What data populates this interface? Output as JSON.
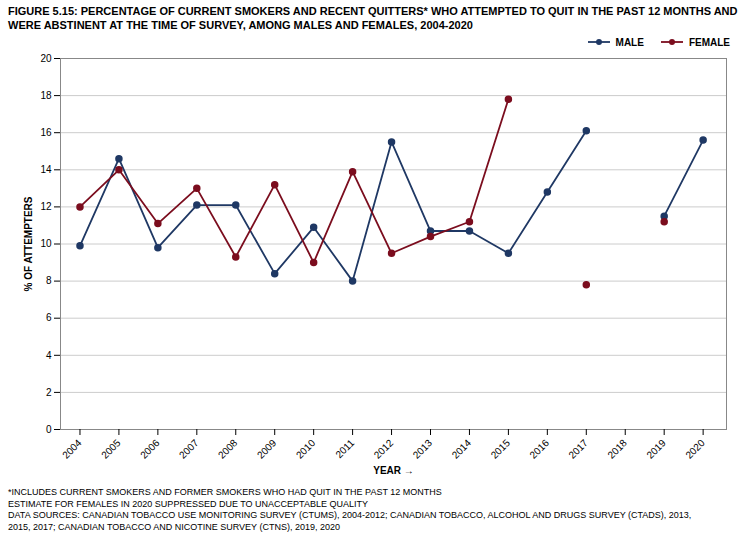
{
  "chart_data": {
    "type": "line",
    "title": "FIGURE 5.15: PERCENTAGE OF CURRENT SMOKERS AND RECENT QUITTERS* WHO ATTEMPTED TO QUIT IN THE PAST 12 MONTHS AND WERE ABSTINENT AT THE TIME OF SURVEY, AMONG MALES AND FEMALES, 2004-2020",
    "xlabel": "YEAR",
    "ylabel": "% OF ATTEMPTERS",
    "x": [
      2004,
      2005,
      2006,
      2007,
      2008,
      2009,
      2010,
      2011,
      2012,
      2013,
      2014,
      2015,
      2016,
      2017,
      2018,
      2019,
      2020
    ],
    "series": [
      {
        "name": "MALE",
        "color": "#1F3864",
        "marker": "circle",
        "values": [
          9.9,
          14.6,
          9.8,
          12.1,
          12.1,
          8.4,
          10.9,
          8.0,
          15.5,
          10.7,
          10.7,
          9.5,
          12.8,
          16.1,
          null,
          11.5,
          15.6
        ]
      },
      {
        "name": "FEMALE",
        "color": "#7B0D1E",
        "marker": "circle",
        "values": [
          12.0,
          14.0,
          11.1,
          13.0,
          9.3,
          13.2,
          9.0,
          13.9,
          9.5,
          10.4,
          11.2,
          17.8,
          null,
          7.8,
          null,
          11.2,
          null
        ]
      }
    ],
    "xlim": [
      2003.5,
      2020.6
    ],
    "xticks": [
      2004,
      2005,
      2006,
      2007,
      2008,
      2009,
      2010,
      2011,
      2012,
      2013,
      2014,
      2015,
      2016,
      2017,
      2018,
      2019,
      2020
    ],
    "ylim": [
      0,
      20
    ],
    "yticks": [
      0,
      2,
      4,
      6,
      8,
      10,
      12,
      14,
      16,
      18,
      20
    ],
    "grid": true,
    "legend": "upper right",
    "footnotes": [
      "*INCLUDES CURRENT SMOKERS AND FORMER SMOKERS WHO HAD QUIT IN THE PAST 12 MONTHS",
      "ESTIMATE FOR FEMALES IN 2020 SUPPRESSED DUE TO UNACCEPTABLE QUALITY",
      "DATA SOURCES: CANADIAN TOBACCO USE MONITORING SURVEY (CTUMS), 2004-2012; CANADIAN TOBACCO, ALCOHOL AND DRUGS SURVEY (CTADS), 2013,",
      "2015, 2017; CANADIAN TOBACCO AND NICOTINE SURVEY (CTNS), 2019, 2020"
    ]
  }
}
